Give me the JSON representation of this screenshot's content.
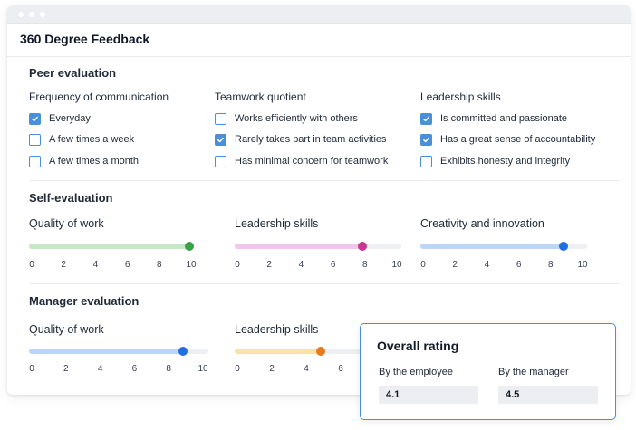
{
  "app": {
    "title": "360 Degree Feedback"
  },
  "peer": {
    "title": "Peer evaluation",
    "groups": [
      {
        "label": "Frequency of communication",
        "options": [
          {
            "label": "Everyday",
            "checked": true
          },
          {
            "label": "A few times a week",
            "checked": false
          },
          {
            "label": "A few times a month",
            "checked": false
          }
        ]
      },
      {
        "label": "Teamwork quotient",
        "options": [
          {
            "label": "Works efficiently with others",
            "checked": false
          },
          {
            "label": "Rarely takes part in team activities",
            "checked": true
          },
          {
            "label": "Has minimal concern for teamwork",
            "checked": false
          }
        ]
      },
      {
        "label": "Leadership skills",
        "options": [
          {
            "label": "Is committed and passionate",
            "checked": true
          },
          {
            "label": "Has a great sense of accountability",
            "checked": true
          },
          {
            "label": "Exhibits honesty and integrity",
            "checked": false
          }
        ]
      }
    ]
  },
  "self": {
    "title": "Self-evaluation",
    "sliders": [
      {
        "label": "Quality of work",
        "value": 10,
        "fill": "#c6e8c4",
        "thumb": "#3aa14a",
        "ticks": [
          "0",
          "2",
          "4",
          "6",
          "8",
          "10"
        ]
      },
      {
        "label": "Leadership skills",
        "value": 8,
        "fill": "#f2c6ec",
        "thumb": "#c7378e",
        "ticks": [
          "0",
          "2",
          "4",
          "6",
          "8",
          "10"
        ]
      },
      {
        "label": "Creativity and innovation",
        "value": 9,
        "fill": "#bcd6f7",
        "thumb": "#1f6fe0",
        "ticks": [
          "0",
          "2",
          "4",
          "6",
          "8",
          "10"
        ]
      }
    ]
  },
  "manager": {
    "title": "Manager evaluation",
    "sliders": [
      {
        "label": "Quality of work",
        "value": 9,
        "fill": "#bcd6f7",
        "thumb": "#1f6fe0",
        "ticks": [
          "0",
          "2",
          "4",
          "6",
          "8",
          "10"
        ]
      },
      {
        "label": "Leadership skills",
        "value": 5,
        "fill": "#f8e2a8",
        "thumb": "#e8771e",
        "ticks": [
          "0",
          "2",
          "4",
          "6"
        ]
      }
    ]
  },
  "rating": {
    "title": "Overall rating",
    "employee_label": "By the employee",
    "employee_value": "4.1",
    "manager_label": "By the manager",
    "manager_value": "4.5"
  }
}
